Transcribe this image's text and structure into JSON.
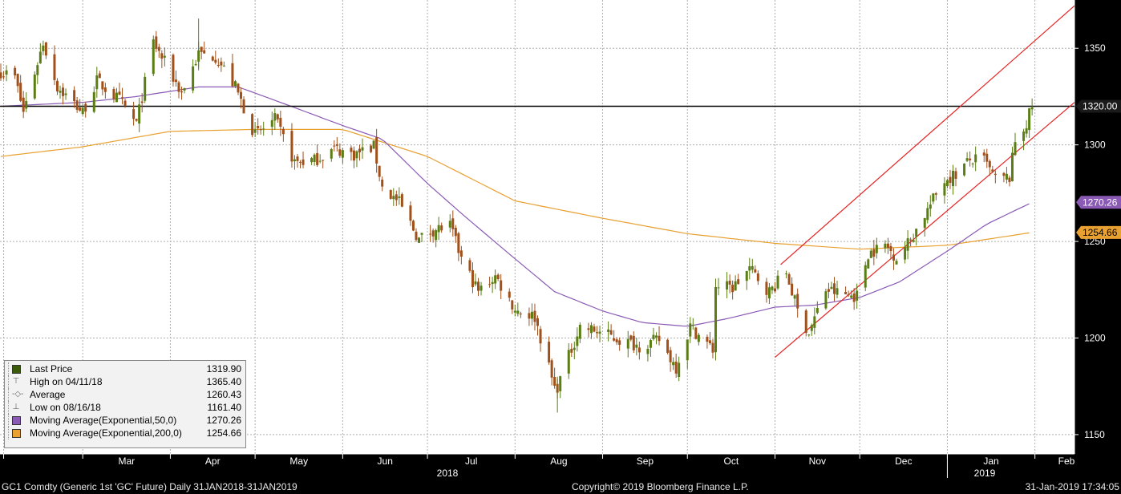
{
  "colors": {
    "background": "#000000",
    "grid": "#b0b0b0",
    "up_candle": "#5a7d14",
    "down_candle": "#a0501a",
    "ema50": "#8a5ab4",
    "ema200": "#e8a030",
    "channel": "#e82020",
    "horizontal_line": "#000000"
  },
  "chart_data": {
    "type": "candlestick",
    "title": "GC1 Comdty (Generic 1st 'GC' Future)  Daily 31JAN2018-31JAN2019",
    "ylim": [
      1140,
      1375
    ],
    "y_ticks": [
      1150,
      1200,
      1250,
      1300,
      1350
    ],
    "grid": true,
    "x_month_labels": [
      "Mar",
      "Apr",
      "May",
      "Jun",
      "Jul",
      "Aug",
      "Sep",
      "Oct",
      "Nov",
      "Dec",
      "Jan",
      "Feb"
    ],
    "x_year_labels": [
      "2018",
      "2019"
    ],
    "horizontal_line": 1320.0,
    "price_tags": [
      "1320.00",
      "1270.26",
      "1254.66"
    ],
    "last_price": 1319.9,
    "high": {
      "date": "04/11/18",
      "value": 1365.4
    },
    "average": 1260.43,
    "low": {
      "date": "08/16/18",
      "value": 1161.4
    },
    "ema50_last": 1270.26,
    "ema200_last": 1254.66,
    "close_anchors": [
      [
        "2018-01-31",
        1338
      ],
      [
        "2018-02-05",
        1335
      ],
      [
        "2018-02-08",
        1317
      ],
      [
        "2018-02-15",
        1353
      ],
      [
        "2018-02-20",
        1330
      ],
      [
        "2018-03-01",
        1317
      ],
      [
        "2018-03-06",
        1333
      ],
      [
        "2018-03-14",
        1323
      ],
      [
        "2018-03-20",
        1311
      ],
      [
        "2018-03-26",
        1353
      ],
      [
        "2018-04-05",
        1327
      ],
      [
        "2018-04-11",
        1347
      ],
      [
        "2018-04-17",
        1346
      ],
      [
        "2018-04-24",
        1330
      ],
      [
        "2018-05-01",
        1305
      ],
      [
        "2018-05-08",
        1313
      ],
      [
        "2018-05-15",
        1291
      ],
      [
        "2018-05-22",
        1292
      ],
      [
        "2018-05-29",
        1298
      ],
      [
        "2018-06-05",
        1295
      ],
      [
        "2018-06-12",
        1299
      ],
      [
        "2018-06-15",
        1278
      ],
      [
        "2018-06-21",
        1270
      ],
      [
        "2018-06-28",
        1251
      ],
      [
        "2018-07-03",
        1256
      ],
      [
        "2018-07-09",
        1258
      ],
      [
        "2018-07-13",
        1241
      ],
      [
        "2018-07-19",
        1224
      ],
      [
        "2018-07-25",
        1232
      ],
      [
        "2018-08-01",
        1215
      ],
      [
        "2018-08-08",
        1211
      ],
      [
        "2018-08-15",
        1174
      ],
      [
        "2018-08-16",
        1175
      ],
      [
        "2018-08-24",
        1206
      ],
      [
        "2018-08-31",
        1203
      ],
      [
        "2018-09-07",
        1199
      ],
      [
        "2018-09-14",
        1196
      ],
      [
        "2018-09-21",
        1199
      ],
      [
        "2018-09-27",
        1185
      ],
      [
        "2018-10-02",
        1206
      ],
      [
        "2018-10-10",
        1194
      ],
      [
        "2018-10-11",
        1227
      ],
      [
        "2018-10-17",
        1226
      ],
      [
        "2018-10-23",
        1236
      ],
      [
        "2018-10-30",
        1224
      ],
      [
        "2018-11-05",
        1234
      ],
      [
        "2018-11-09",
        1214
      ],
      [
        "2018-11-13",
        1203
      ],
      [
        "2018-11-19",
        1225
      ],
      [
        "2018-11-27",
        1222
      ],
      [
        "2018-11-30",
        1222
      ],
      [
        "2018-12-04",
        1244
      ],
      [
        "2018-12-10",
        1248
      ],
      [
        "2018-12-14",
        1242
      ],
      [
        "2018-12-19",
        1251
      ],
      [
        "2018-12-26",
        1269
      ],
      [
        "2018-12-31",
        1282
      ],
      [
        "2019-01-04",
        1285
      ],
      [
        "2019-01-09",
        1292
      ],
      [
        "2019-01-14",
        1292
      ],
      [
        "2019-01-18",
        1282
      ],
      [
        "2019-01-23",
        1283
      ],
      [
        "2019-01-25",
        1302
      ],
      [
        "2019-01-29",
        1311
      ],
      [
        "2019-01-31",
        1320
      ]
    ],
    "ema50_anchors": [
      [
        "2018-01-31",
        1320
      ],
      [
        "2018-03-01",
        1322
      ],
      [
        "2018-03-20",
        1325
      ],
      [
        "2018-04-11",
        1330
      ],
      [
        "2018-04-25",
        1330
      ],
      [
        "2018-05-10",
        1322
      ],
      [
        "2018-06-01",
        1310
      ],
      [
        "2018-06-15",
        1303
      ],
      [
        "2018-07-01",
        1280
      ],
      [
        "2018-07-15",
        1262
      ],
      [
        "2018-08-01",
        1241
      ],
      [
        "2018-08-15",
        1224
      ],
      [
        "2018-09-01",
        1214
      ],
      [
        "2018-09-15",
        1208
      ],
      [
        "2018-10-01",
        1206
      ],
      [
        "2018-10-15",
        1210
      ],
      [
        "2018-11-01",
        1216
      ],
      [
        "2018-11-15",
        1217
      ],
      [
        "2018-12-01",
        1221
      ],
      [
        "2018-12-15",
        1229
      ],
      [
        "2019-01-01",
        1245
      ],
      [
        "2019-01-15",
        1259
      ],
      [
        "2019-01-31",
        1270.26
      ]
    ],
    "ema200_anchors": [
      [
        "2018-01-31",
        1294
      ],
      [
        "2018-03-01",
        1299
      ],
      [
        "2018-04-01",
        1307
      ],
      [
        "2018-05-01",
        1308
      ],
      [
        "2018-06-01",
        1308
      ],
      [
        "2018-07-01",
        1294
      ],
      [
        "2018-08-01",
        1271
      ],
      [
        "2018-09-01",
        1262
      ],
      [
        "2018-10-01",
        1254
      ],
      [
        "2018-11-01",
        1249
      ],
      [
        "2018-12-01",
        1246
      ],
      [
        "2019-01-01",
        1248
      ],
      [
        "2019-01-31",
        1254.66
      ]
    ],
    "channel_lines": [
      [
        [
          "2018-11-03",
          1238
        ],
        [
          "2019-02-15",
          1372
        ]
      ],
      [
        [
          "2018-11-01",
          1190
        ],
        [
          "2019-02-15",
          1322
        ]
      ]
    ]
  },
  "legend": {
    "items": [
      {
        "label": "Last Price",
        "value": "1319.90"
      },
      {
        "label": "High on 04/11/18",
        "value": "1365.40"
      },
      {
        "label": "Average",
        "value": "1260.43"
      },
      {
        "label": "Low on 08/16/18",
        "value": "1161.40"
      },
      {
        "label": "Moving Average(Exponential,50,0)",
        "value": "1270.26"
      },
      {
        "label": "Moving Average(Exponential,200,0)",
        "value": "1254.66"
      }
    ],
    "icons": [
      "square-green",
      "high-marker-icon",
      "average-marker-icon",
      "low-marker-icon",
      "square-purple",
      "square-orange"
    ]
  },
  "footer": {
    "left": "GC1 Comdty (Generic 1st 'GC' Future)  Daily 31JAN2018-31JAN2019",
    "center": "Copyright© 2019 Bloomberg Finance L.P.",
    "right": "31-Jan-2019 17:34:05"
  }
}
